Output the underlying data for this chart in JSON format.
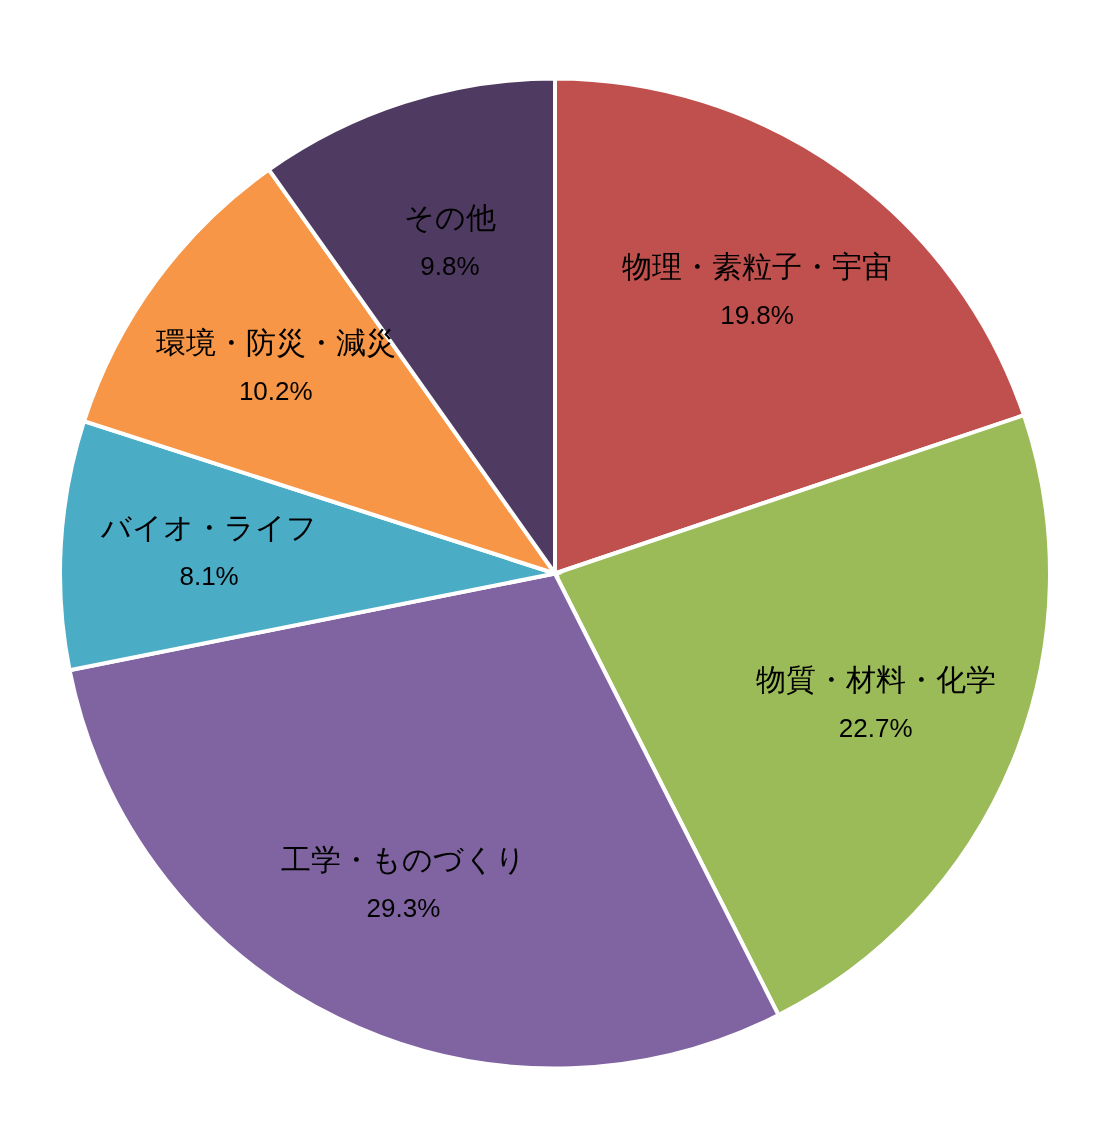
{
  "chart_data": {
    "type": "pie",
    "categories": [
      "物理・素粒子・宇宙",
      "物質・材料・化学",
      "工学・ものづくり",
      "バイオ・ライフ",
      "環境・防災・減災",
      "その他"
    ],
    "values": [
      19.8,
      22.7,
      29.3,
      8.1,
      10.2,
      9.8
    ],
    "value_labels": [
      "19.8%",
      "22.7%",
      "29.3%",
      "8.1%",
      "10.2%",
      "9.8%"
    ],
    "colors": [
      "#c0504d",
      "#9bbb59",
      "#8064a2",
      "#4bacc6",
      "#f79646",
      "#4f3b62"
    ]
  }
}
